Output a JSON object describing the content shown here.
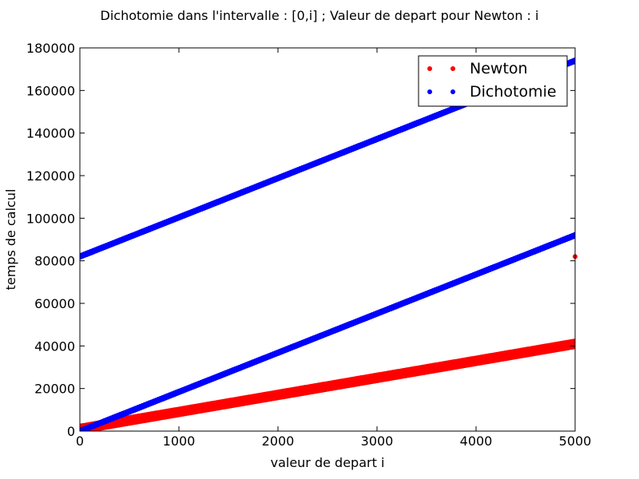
{
  "chart_data": {
    "type": "scatter",
    "title": "Dichotomie dans l'intervalle : [0,i] ; Valeur de depart pour Newton : i",
    "xlabel": "valeur de depart i",
    "ylabel": "temps de calcul",
    "xlim": [
      0,
      5000
    ],
    "ylim": [
      0,
      180000
    ],
    "xticks": [
      0,
      1000,
      2000,
      3000,
      4000,
      5000
    ],
    "yticks": [
      0,
      20000,
      40000,
      60000,
      80000,
      100000,
      120000,
      140000,
      160000,
      180000
    ],
    "grid": false,
    "legend": {
      "placement": "top-right"
    },
    "series": [
      {
        "name": "Newton",
        "color": "#ff0000",
        "bands": [
          {
            "x": [
              0,
              5000
            ],
            "y": [
              0,
              40000
            ]
          },
          {
            "x": [
              0,
              5000
            ],
            "y": [
              2000,
              42000
            ]
          }
        ],
        "outliers": [
          {
            "x": 5000,
            "y": 82000
          }
        ]
      },
      {
        "name": "Dichotomie",
        "color": "#0000ff",
        "bands": [
          {
            "x": [
              0,
              5000
            ],
            "y": [
              82000,
              174000
            ]
          },
          {
            "x": [
              0,
              5000
            ],
            "y": [
              0,
              92000
            ]
          }
        ],
        "outliers": []
      }
    ]
  }
}
